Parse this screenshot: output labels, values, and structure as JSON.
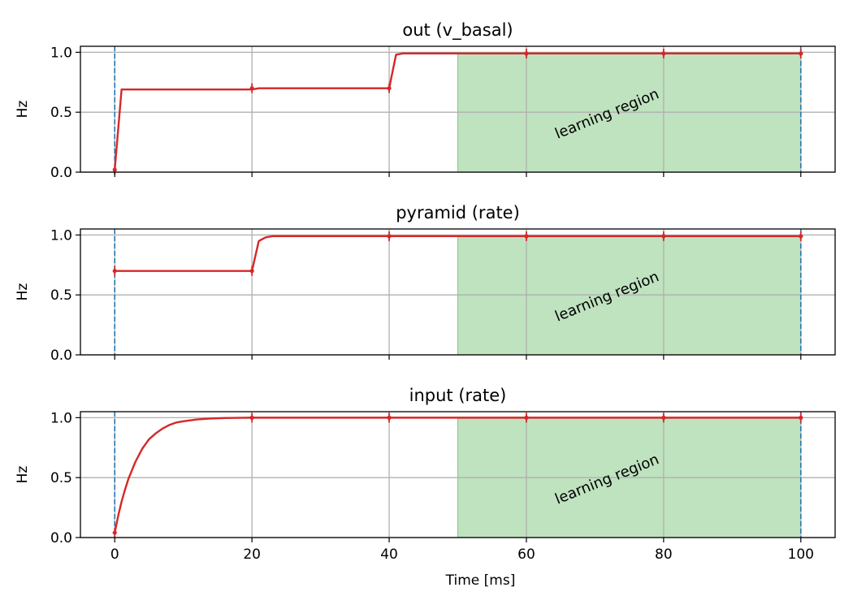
{
  "chart_data": [
    {
      "type": "line",
      "title": "out (v_basal)",
      "ylabel": "Hz",
      "xlabel": "",
      "xlim": [
        -5,
        105
      ],
      "ylim": [
        0,
        1.05
      ],
      "grid": true,
      "x_ticks": [
        0,
        20,
        40,
        60,
        80,
        100
      ],
      "x_tick_labels": [],
      "y_ticks": [
        0.0,
        0.5,
        1.0
      ],
      "y_tick_labels": [
        "0.0",
        "0.5",
        "1.0"
      ],
      "vlines": [
        0,
        100
      ],
      "shaded_region": {
        "x": [
          50,
          100
        ],
        "color": "#2ca02c",
        "label": "learning region"
      },
      "series": [
        {
          "color": "#d62728",
          "x": [
            0,
            1,
            20,
            21,
            40,
            41,
            42,
            60,
            80,
            100
          ],
          "y": [
            0.02,
            0.69,
            0.69,
            0.7,
            0.7,
            0.98,
            0.99,
            0.99,
            0.99,
            0.99
          ]
        }
      ],
      "markers": {
        "x": [
          0,
          20,
          40,
          60,
          80,
          100
        ],
        "y": [
          0.02,
          0.7,
          0.7,
          0.99,
          0.99,
          0.99
        ]
      }
    },
    {
      "type": "line",
      "title": "pyramid (rate)",
      "ylabel": "Hz",
      "xlabel": "",
      "xlim": [
        -5,
        105
      ],
      "ylim": [
        0,
        1.05
      ],
      "grid": true,
      "x_ticks": [
        0,
        20,
        40,
        60,
        80,
        100
      ],
      "x_tick_labels": [],
      "y_ticks": [
        0.0,
        0.5,
        1.0
      ],
      "y_tick_labels": [
        "0.0",
        "0.5",
        "1.0"
      ],
      "vlines": [
        0,
        100
      ],
      "shaded_region": {
        "x": [
          50,
          100
        ],
        "color": "#2ca02c",
        "label": "learning region"
      },
      "series": [
        {
          "color": "#d62728",
          "x": [
            0,
            1,
            20,
            21,
            22,
            23,
            40,
            60,
            80,
            100
          ],
          "y": [
            0.7,
            0.7,
            0.7,
            0.95,
            0.98,
            0.99,
            0.99,
            0.99,
            0.99,
            0.99
          ]
        }
      ],
      "markers": {
        "x": [
          0,
          20,
          40,
          60,
          80,
          100
        ],
        "y": [
          0.7,
          0.7,
          0.99,
          0.99,
          0.99,
          0.99
        ]
      }
    },
    {
      "type": "line",
      "title": "input (rate)",
      "ylabel": "Hz",
      "xlabel": "Time [ms]",
      "xlim": [
        -5,
        105
      ],
      "ylim": [
        0,
        1.05
      ],
      "grid": true,
      "x_ticks": [
        0,
        20,
        40,
        60,
        80,
        100
      ],
      "x_tick_labels": [
        "0",
        "20",
        "40",
        "60",
        "80",
        "100"
      ],
      "y_ticks": [
        0.0,
        0.5,
        1.0
      ],
      "y_tick_labels": [
        "0.0",
        "0.5",
        "1.0"
      ],
      "vlines": [
        0,
        100
      ],
      "shaded_region": {
        "x": [
          50,
          100
        ],
        "color": "#2ca02c",
        "label": "learning region"
      },
      "series": [
        {
          "color": "#d62728",
          "x": [
            0,
            0.5,
            1,
            1.5,
            2,
            3,
            4,
            5,
            6,
            7,
            8,
            9,
            10,
            12,
            14,
            16,
            18,
            20,
            40,
            60,
            80,
            100
          ],
          "y": [
            0.04,
            0.18,
            0.3,
            0.4,
            0.49,
            0.63,
            0.74,
            0.82,
            0.87,
            0.91,
            0.94,
            0.96,
            0.97,
            0.985,
            0.993,
            0.997,
            0.999,
            1.0,
            1.0,
            1.0,
            1.0,
            1.0
          ]
        }
      ],
      "markers": {
        "x": [
          0,
          20,
          40,
          60,
          80,
          100
        ],
        "y": [
          0.04,
          1.0,
          1.0,
          1.0,
          1.0,
          1.0
        ]
      }
    }
  ]
}
